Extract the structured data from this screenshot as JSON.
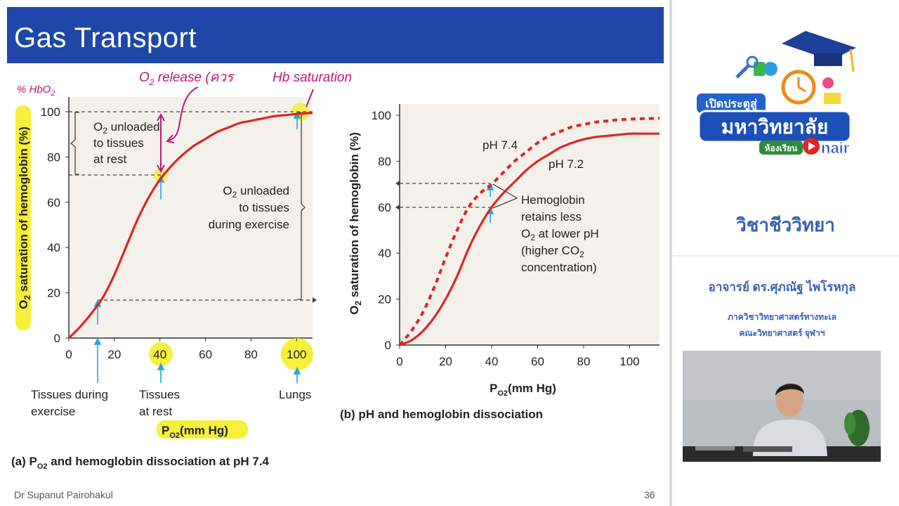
{
  "slide": {
    "title": "Gas Transport",
    "author": "Dr Supanut Pairohakul",
    "page_number": "36"
  },
  "panel": {
    "logo_line1": "เปิดประตูสู่",
    "logo_line2": "มหาวิทยาลัย",
    "logo_room": "ห้องเรียน",
    "logo_onair": "nair",
    "subject": "วิชาชีววิทยา",
    "teacher": "อาจารย์ ดร.ศุภณัฐ ไพโรหกุล",
    "department": "ภาควิชาวิทยาศาสตร์ทางทะเล",
    "faculty": "คณะวิทยาศาสตร์ จุฬาฯ"
  },
  "chart_data": [
    {
      "type": "line",
      "caption": "(a) P",
      "caption_sub": "O2",
      "caption_rest": " and hemoglobin dissociation at pH 7.4",
      "ylabel_prefix": "O",
      "ylabel_sub": "2",
      "ylabel_rest": " saturation of hemoglobin (%)",
      "xlabel": "P",
      "xlabel_sub": "O2",
      "xlabel_rest": "(mm Hg)",
      "xlim": [
        0,
        107
      ],
      "ylim": [
        0,
        100
      ],
      "xticks": [
        "0",
        "20",
        "40",
        "60",
        "80",
        "100"
      ],
      "yticks": [
        "0",
        "20",
        "40",
        "60",
        "80",
        "100"
      ],
      "series": [
        {
          "name": "pH 7.4",
          "x": [
            0,
            5,
            10,
            15,
            20,
            25,
            30,
            35,
            40,
            45,
            50,
            55,
            60,
            65,
            70,
            75,
            80,
            85,
            90,
            95,
            100,
            107
          ],
          "y": [
            0,
            5,
            11,
            18,
            28,
            40,
            52,
            62,
            70,
            76,
            81,
            85,
            88,
            91,
            93,
            95,
            96,
            97,
            98,
            98.5,
            99,
            99.5
          ]
        }
      ],
      "reference_lines": {
        "rest": 70,
        "exercise": 17,
        "lungs": 99
      },
      "annotations": {
        "rest_box_line1": "O",
        "rest_box_sub": "2",
        "rest_box_line1_rest": " unloaded",
        "rest_box_line2": "to tissues",
        "rest_box_line3": "at rest",
        "exercise_line1": "O",
        "exercise_sub": "2",
        "exercise_line1_rest": " unloaded",
        "exercise_line2": "to tissues",
        "exercise_line3": "during exercise",
        "below_exercise_1": "Tissues during",
        "below_exercise_2": "exercise",
        "below_rest_1": "Tissues",
        "below_rest_2": "at rest",
        "below_lungs": "Lungs"
      },
      "handwriting": {
        "hbo2": "% HbO",
        "hbo2_sub": "2",
        "o2release": "O",
        "o2release_sub": "2",
        "o2release_rest": " release (ควร",
        "hbsat": "Hb saturation"
      }
    },
    {
      "type": "line",
      "caption": "(b) pH and hemoglobin dissociation",
      "ylabel_prefix": "O",
      "ylabel_sub": "2",
      "ylabel_rest": " saturation of hemoglobin (%)",
      "xlabel": "P",
      "xlabel_sub": "O2",
      "xlabel_rest": "(mm Hg)",
      "xlim": [
        0,
        113
      ],
      "ylim": [
        0,
        100
      ],
      "xticks": [
        "0",
        "20",
        "40",
        "60",
        "80",
        "100"
      ],
      "yticks": [
        "0",
        "20",
        "40",
        "60",
        "80",
        "100"
      ],
      "series": [
        {
          "name": "pH 7.4",
          "style": "dashed",
          "x": [
            0,
            5,
            10,
            15,
            20,
            25,
            30,
            35,
            40,
            45,
            50,
            55,
            60,
            65,
            70,
            75,
            80,
            85,
            90,
            95,
            100,
            105,
            113
          ],
          "y": [
            0,
            6,
            14,
            25,
            38,
            50,
            60,
            66,
            70,
            75,
            80,
            84,
            88,
            91,
            93,
            95,
            96,
            97,
            97.5,
            98,
            98.3,
            98.5,
            98.7
          ]
        },
        {
          "name": "pH 7.2",
          "style": "solid",
          "x": [
            0,
            5,
            10,
            15,
            20,
            25,
            30,
            35,
            40,
            45,
            50,
            55,
            60,
            65,
            70,
            75,
            80,
            85,
            90,
            95,
            100,
            105,
            113
          ],
          "y": [
            0,
            2,
            6,
            12,
            20,
            30,
            42,
            52,
            60,
            66,
            71,
            76,
            80,
            83,
            86,
            88,
            89.5,
            90.5,
            91,
            91.5,
            92,
            92,
            92
          ]
        }
      ],
      "reference_lines": {
        "ph74_at_40": 70,
        "ph72_at_40": 60
      },
      "annotations": {
        "label_74": "pH 7.4",
        "label_72": "pH 7.2",
        "note_1": "Hemoglobin",
        "note_2": "retains less",
        "note_3": "O",
        "note_3_sub": "2",
        "note_3_rest": " at lower pH",
        "note_4": "(higher CO",
        "note_4_sub": "2",
        "note_5": "concentration)"
      }
    }
  ],
  "colors": {
    "title_bar": "#1f47a8",
    "curve": "#e02424",
    "highlight": "#f6ef3c",
    "handwriting": "#c0147c",
    "arrow_blue": "#1ea7d8",
    "plot_bg": "#f4f1ec",
    "panel_blue": "#3a60b5"
  }
}
